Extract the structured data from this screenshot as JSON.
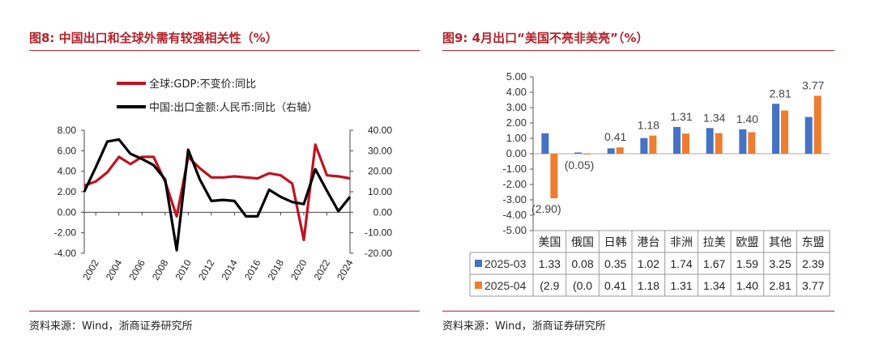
{
  "left": {
    "title": "图8:  中国出口和全球外需有较强相关性（%）",
    "source": "资料来源：Wind，浙商证券研究所",
    "colors": {
      "global": "#c0121f",
      "china": "#000000"
    },
    "chart_data": {
      "type": "line",
      "title": "",
      "x": [
        2001,
        2002,
        2003,
        2004,
        2005,
        2006,
        2007,
        2008,
        2009,
        2010,
        2011,
        2012,
        2013,
        2014,
        2015,
        2016,
        2017,
        2018,
        2019,
        2020,
        2021,
        2022,
        2023,
        2024
      ],
      "x_tick_labels": [
        "2002",
        "2004",
        "2006",
        "2008",
        "2010",
        "2012",
        "2014",
        "2016",
        "2018",
        "2020",
        "2022",
        "2024"
      ],
      "x_ticks": [
        2002,
        2004,
        2006,
        2008,
        2010,
        2012,
        2014,
        2016,
        2018,
        2020,
        2022,
        2024
      ],
      "ylim_left": [
        -4,
        8
      ],
      "ylim_right": [
        -20,
        40
      ],
      "y_left_ticks": [
        "-4.00",
        "-2.00",
        "0.00",
        "2.00",
        "4.00",
        "6.00",
        "8.00"
      ],
      "y_right_ticks": [
        "-20.00",
        "-10.00",
        "0.00",
        "10.00",
        "20.00",
        "30.00",
        "40.00"
      ],
      "series": [
        {
          "name": "全球:GDP:不变价:同比",
          "axis": "left",
          "values": [
            2.6,
            3.0,
            3.9,
            5.4,
            4.7,
            5.4,
            5.4,
            3.0,
            -0.4,
            5.4,
            4.3,
            3.4,
            3.4,
            3.5,
            3.4,
            3.3,
            3.8,
            3.6,
            2.8,
            -2.7,
            6.6,
            3.6,
            3.5,
            3.3
          ]
        },
        {
          "name": "中国:出口金额:人民币:同比（右轴）",
          "axis": "right",
          "values": [
            10.0,
            22.0,
            34.5,
            35.5,
            28.5,
            26.0,
            23.0,
            16.0,
            -18.5,
            30.5,
            16.0,
            5.5,
            6.0,
            5.5,
            -2.0,
            -2.0,
            11.0,
            7.5,
            5.0,
            4.0,
            21.0,
            10.5,
            0.5,
            7.5
          ]
        }
      ]
    }
  },
  "right": {
    "title": "图9:  4月出口“美国不亮非美亮”（%）",
    "source": "资料来源：Wind，浙商证券研究所",
    "colors": {
      "s1": "#4472c4",
      "s2": "#ed7d31"
    },
    "chart_data": {
      "type": "bar",
      "title": "",
      "categories": [
        "美国",
        "俄国",
        "日韩",
        "港台",
        "非洲",
        "拉美",
        "欧盟",
        "其他",
        "东盟"
      ],
      "ylim": [
        -5,
        5
      ],
      "y_ticks": [
        "-5.00",
        "-4.00",
        "-3.00",
        "-2.00",
        "-1.00",
        "0.00",
        "1.00",
        "2.00",
        "3.00",
        "4.00",
        "5.00"
      ],
      "series": [
        {
          "name": "2025-03",
          "values": [
            1.33,
            0.08,
            0.35,
            1.02,
            1.74,
            1.67,
            1.59,
            3.25,
            2.39
          ],
          "table_text": [
            "1.33",
            "0.08",
            "0.35",
            "1.02",
            "1.74",
            "1.67",
            "1.59",
            "3.25",
            "2.39"
          ]
        },
        {
          "name": "2025-04",
          "values": [
            -2.9,
            -0.05,
            0.41,
            1.18,
            1.31,
            1.34,
            1.4,
            2.81,
            3.77
          ],
          "table_text": [
            "(2.9",
            "(0.0",
            "0.41",
            "1.18",
            "1.31",
            "1.34",
            "1.40",
            "2.81",
            "3.77"
          ],
          "data_labels": [
            "(2.90)",
            "(0.05)",
            "0.41",
            "1.18",
            "1.31",
            "1.34",
            "1.40",
            "2.81",
            "3.77"
          ]
        }
      ]
    }
  }
}
